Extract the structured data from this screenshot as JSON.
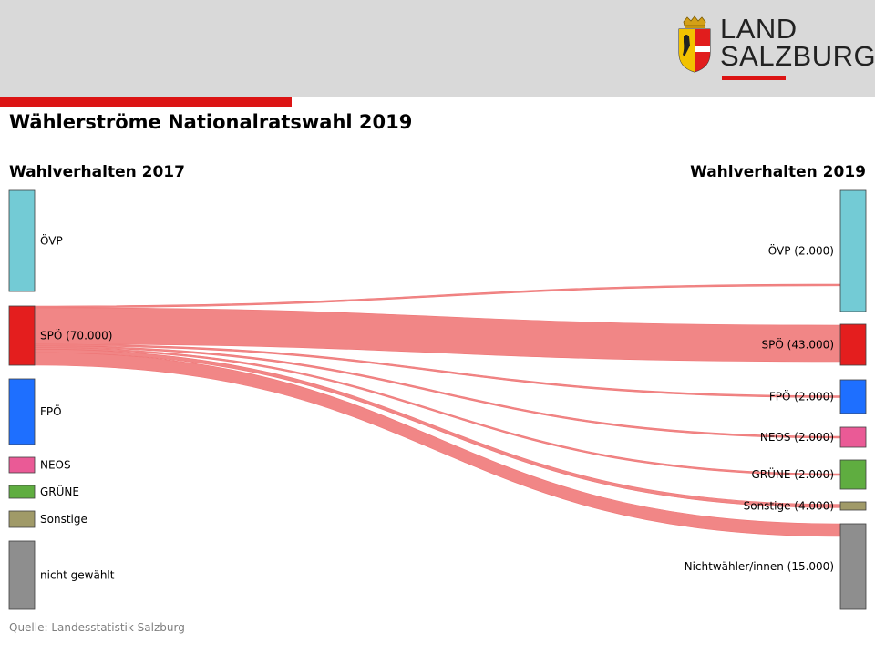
{
  "header": {
    "logo_line1": "LAND",
    "logo_line2": "SALZBURG"
  },
  "title": "Wählerströme Nationalratswahl 2019",
  "left_heading": "Wahlverhalten 2017",
  "right_heading": "Wahlverhalten 2019",
  "source": "Quelle: Landesstatistik Salzburg",
  "colors": {
    "header_band": "#d9d9d9",
    "accent_red": "#dc1414",
    "flow": "#f08080"
  },
  "chart_data": {
    "type": "sankey",
    "left_nodes": [
      {
        "id": "oevp17",
        "label": "ÖVP",
        "color": "#73cbd5"
      },
      {
        "id": "spoe17",
        "label": "SPÖ (70.000)",
        "color": "#e41e1e",
        "value": 70000
      },
      {
        "id": "fpoe17",
        "label": "FPÖ",
        "color": "#1e6fff"
      },
      {
        "id": "neos17",
        "label": "NEOS",
        "color": "#ea5a96"
      },
      {
        "id": "gruene17",
        "label": "GRÜNE",
        "color": "#5fad40"
      },
      {
        "id": "sonst17",
        "label": "Sonstige",
        "color": "#a09a68"
      },
      {
        "id": "nicht17",
        "label": "nicht gewählt",
        "color": "#8e8e8e"
      }
    ],
    "right_nodes": [
      {
        "id": "oevp19",
        "label": "ÖVP (2.000)",
        "color": "#73cbd5",
        "value": 2000
      },
      {
        "id": "spoe19",
        "label": "SPÖ (43.000)",
        "color": "#e41e1e",
        "value": 43000
      },
      {
        "id": "fpoe19",
        "label": "FPÖ (2.000)",
        "color": "#1e6fff",
        "value": 2000
      },
      {
        "id": "neos19",
        "label": "NEOS (2.000)",
        "color": "#ea5a96",
        "value": 2000
      },
      {
        "id": "gruene19",
        "label": "GRÜNE (2.000)",
        "color": "#5fad40",
        "value": 2000
      },
      {
        "id": "sonst19",
        "label": "Sonstige (4.000)",
        "color": "#a09a68",
        "value": 4000
      },
      {
        "id": "nicht19",
        "label": "Nichtwähler/innen (15.000)",
        "color": "#8e8e8e",
        "value": 15000
      }
    ],
    "flows": [
      {
        "source": "spoe17",
        "target": "oevp19",
        "value": 2000
      },
      {
        "source": "spoe17",
        "target": "spoe19",
        "value": 43000
      },
      {
        "source": "spoe17",
        "target": "fpoe19",
        "value": 2000
      },
      {
        "source": "spoe17",
        "target": "neos19",
        "value": 2000
      },
      {
        "source": "spoe17",
        "target": "gruene19",
        "value": 2000
      },
      {
        "source": "spoe17",
        "target": "sonst19",
        "value": 4000
      },
      {
        "source": "spoe17",
        "target": "nicht19",
        "value": 15000
      }
    ]
  }
}
